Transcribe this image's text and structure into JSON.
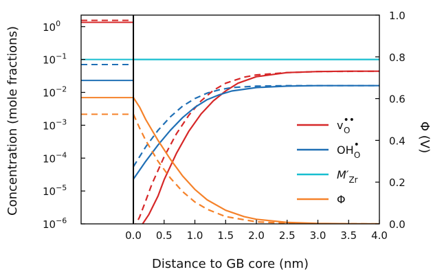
{
  "chart_data": {
    "type": "line",
    "xlabel": "Distance to GB core (nm)",
    "ylabel_left": "Concentration (mole fractions)",
    "ylabel_right": "Φ (V)",
    "xlim": [
      -0.85,
      4.0
    ],
    "ylim_left_log10": [
      -6,
      0.35
    ],
    "ylim_right": [
      0.0,
      1.0
    ],
    "y_scale_left": "log",
    "grid": false,
    "legend_placement": "right",
    "core_boundary_x": 0.0,
    "x_ticks": [
      {
        "value": 0.0,
        "label": "0.0"
      },
      {
        "value": 0.5,
        "label": "0.5"
      },
      {
        "value": 1.0,
        "label": "1.0"
      },
      {
        "value": 1.5,
        "label": "1.5"
      },
      {
        "value": 2.0,
        "label": "2.0"
      },
      {
        "value": 2.5,
        "label": "2.5"
      },
      {
        "value": 3.0,
        "label": "3.0"
      },
      {
        "value": 3.5,
        "label": "3.5"
      },
      {
        "value": 4.0,
        "label": "4.0"
      }
    ],
    "y_left_ticks": [
      {
        "exp": 0,
        "base": "10",
        "power": "0"
      },
      {
        "exp": -1,
        "base": "10",
        "power": "−1"
      },
      {
        "exp": -2,
        "base": "10",
        "power": "−2"
      },
      {
        "exp": -3,
        "base": "10",
        "power": "−3"
      },
      {
        "exp": -4,
        "base": "10",
        "power": "−4"
      },
      {
        "exp": -5,
        "base": "10",
        "power": "−5"
      },
      {
        "exp": -6,
        "base": "10",
        "power": "−6"
      }
    ],
    "y_right_ticks": [
      {
        "value": 0.0,
        "label": "0.0"
      },
      {
        "value": 0.2,
        "label": "0.2"
      },
      {
        "value": 0.4,
        "label": "0.4"
      },
      {
        "value": 0.6,
        "label": "0.6"
      },
      {
        "value": 0.8,
        "label": "0.8"
      },
      {
        "value": 1.0,
        "label": "1.0"
      }
    ],
    "legend": [
      {
        "key": "vO",
        "main": "v",
        "sub": "O",
        "sup": "••",
        "color": "#d62728"
      },
      {
        "key": "OHO",
        "main": "OH",
        "sub": "O",
        "sup": "•",
        "color": "#1f6fb5"
      },
      {
        "key": "MZr",
        "main": "M′",
        "sub": "Zr",
        "sup": "",
        "color": "#17becf"
      },
      {
        "key": "Phi",
        "main": "Φ",
        "sub": "",
        "sup": "",
        "color": "#f5822a"
      }
    ],
    "series": [
      {
        "key": "vO",
        "style": "solid",
        "axis": "left",
        "color": "#d62728",
        "core": 1.35,
        "x": [
          0.15,
          0.25,
          0.4,
          0.5,
          0.7,
          0.9,
          1.1,
          1.3,
          1.5,
          1.7,
          2.0,
          2.5,
          3.0,
          3.5,
          4.0
        ],
        "y": [
          1e-06,
          1.9e-06,
          7e-06,
          2.2e-05,
          0.00014,
          0.00065,
          0.0022,
          0.0055,
          0.011,
          0.019,
          0.03,
          0.04,
          0.043,
          0.044,
          0.044
        ]
      },
      {
        "key": "vO",
        "style": "dashed",
        "axis": "left",
        "color": "#d62728",
        "core": 1.55,
        "x": [
          0.0,
          0.1,
          0.2,
          0.3,
          0.5,
          0.7,
          0.9,
          1.1,
          1.3,
          1.5,
          1.8,
          2.0,
          2.5,
          3.0,
          4.0
        ],
        "y": [
          7e-07,
          1.6e-06,
          5e-06,
          1.6e-05,
          0.00011,
          0.00055,
          0.002,
          0.0055,
          0.0115,
          0.019,
          0.029,
          0.034,
          0.04,
          0.043,
          0.044
        ]
      },
      {
        "key": "OHO",
        "style": "solid",
        "axis": "left",
        "color": "#1f6fb5",
        "core": 0.023,
        "x": [
          0.0,
          0.2,
          0.4,
          0.6,
          0.8,
          1.0,
          1.2,
          1.4,
          1.6,
          2.0,
          2.5,
          3.0,
          4.0
        ],
        "y": [
          2.3e-05,
          8e-05,
          0.00025,
          0.0007,
          0.0017,
          0.0035,
          0.006,
          0.0085,
          0.011,
          0.014,
          0.0155,
          0.016,
          0.016
        ]
      },
      {
        "key": "OHO",
        "style": "dashed",
        "axis": "left",
        "color": "#1f6fb5",
        "core": 0.07,
        "x": [
          0.0,
          0.2,
          0.4,
          0.6,
          0.8,
          1.0,
          1.2,
          1.4,
          1.6,
          2.0,
          2.5,
          3.0,
          4.0
        ],
        "y": [
          5.5e-05,
          0.00022,
          0.0007,
          0.0018,
          0.0038,
          0.0065,
          0.0095,
          0.012,
          0.014,
          0.0155,
          0.016,
          0.016,
          0.016
        ]
      },
      {
        "key": "MZr",
        "style": "solid",
        "axis": "left",
        "color": "#17becf",
        "core": 0.1,
        "x": [
          0.0,
          4.0
        ],
        "y": [
          0.1,
          0.1
        ]
      },
      {
        "key": "Phi",
        "style": "solid",
        "axis": "right",
        "color": "#f5822a",
        "core": 0.605,
        "x": [
          0.0,
          0.1,
          0.2,
          0.4,
          0.6,
          0.8,
          1.0,
          1.2,
          1.5,
          1.8,
          2.0,
          2.5,
          3.0,
          3.5,
          4.0
        ],
        "y": [
          0.605,
          0.56,
          0.5,
          0.4,
          0.31,
          0.23,
          0.165,
          0.115,
          0.065,
          0.035,
          0.022,
          0.007,
          0.002,
          0.0005,
          0.0
        ]
      },
      {
        "key": "Phi",
        "style": "dashed",
        "axis": "right",
        "color": "#f5822a",
        "core": 0.525,
        "x": [
          0.0,
          0.1,
          0.2,
          0.4,
          0.6,
          0.8,
          1.0,
          1.2,
          1.5,
          2.0,
          2.5,
          3.0,
          4.0
        ],
        "y": [
          0.525,
          0.46,
          0.4,
          0.3,
          0.22,
          0.155,
          0.105,
          0.07,
          0.035,
          0.01,
          0.003,
          0.001,
          0.0
        ]
      }
    ]
  }
}
